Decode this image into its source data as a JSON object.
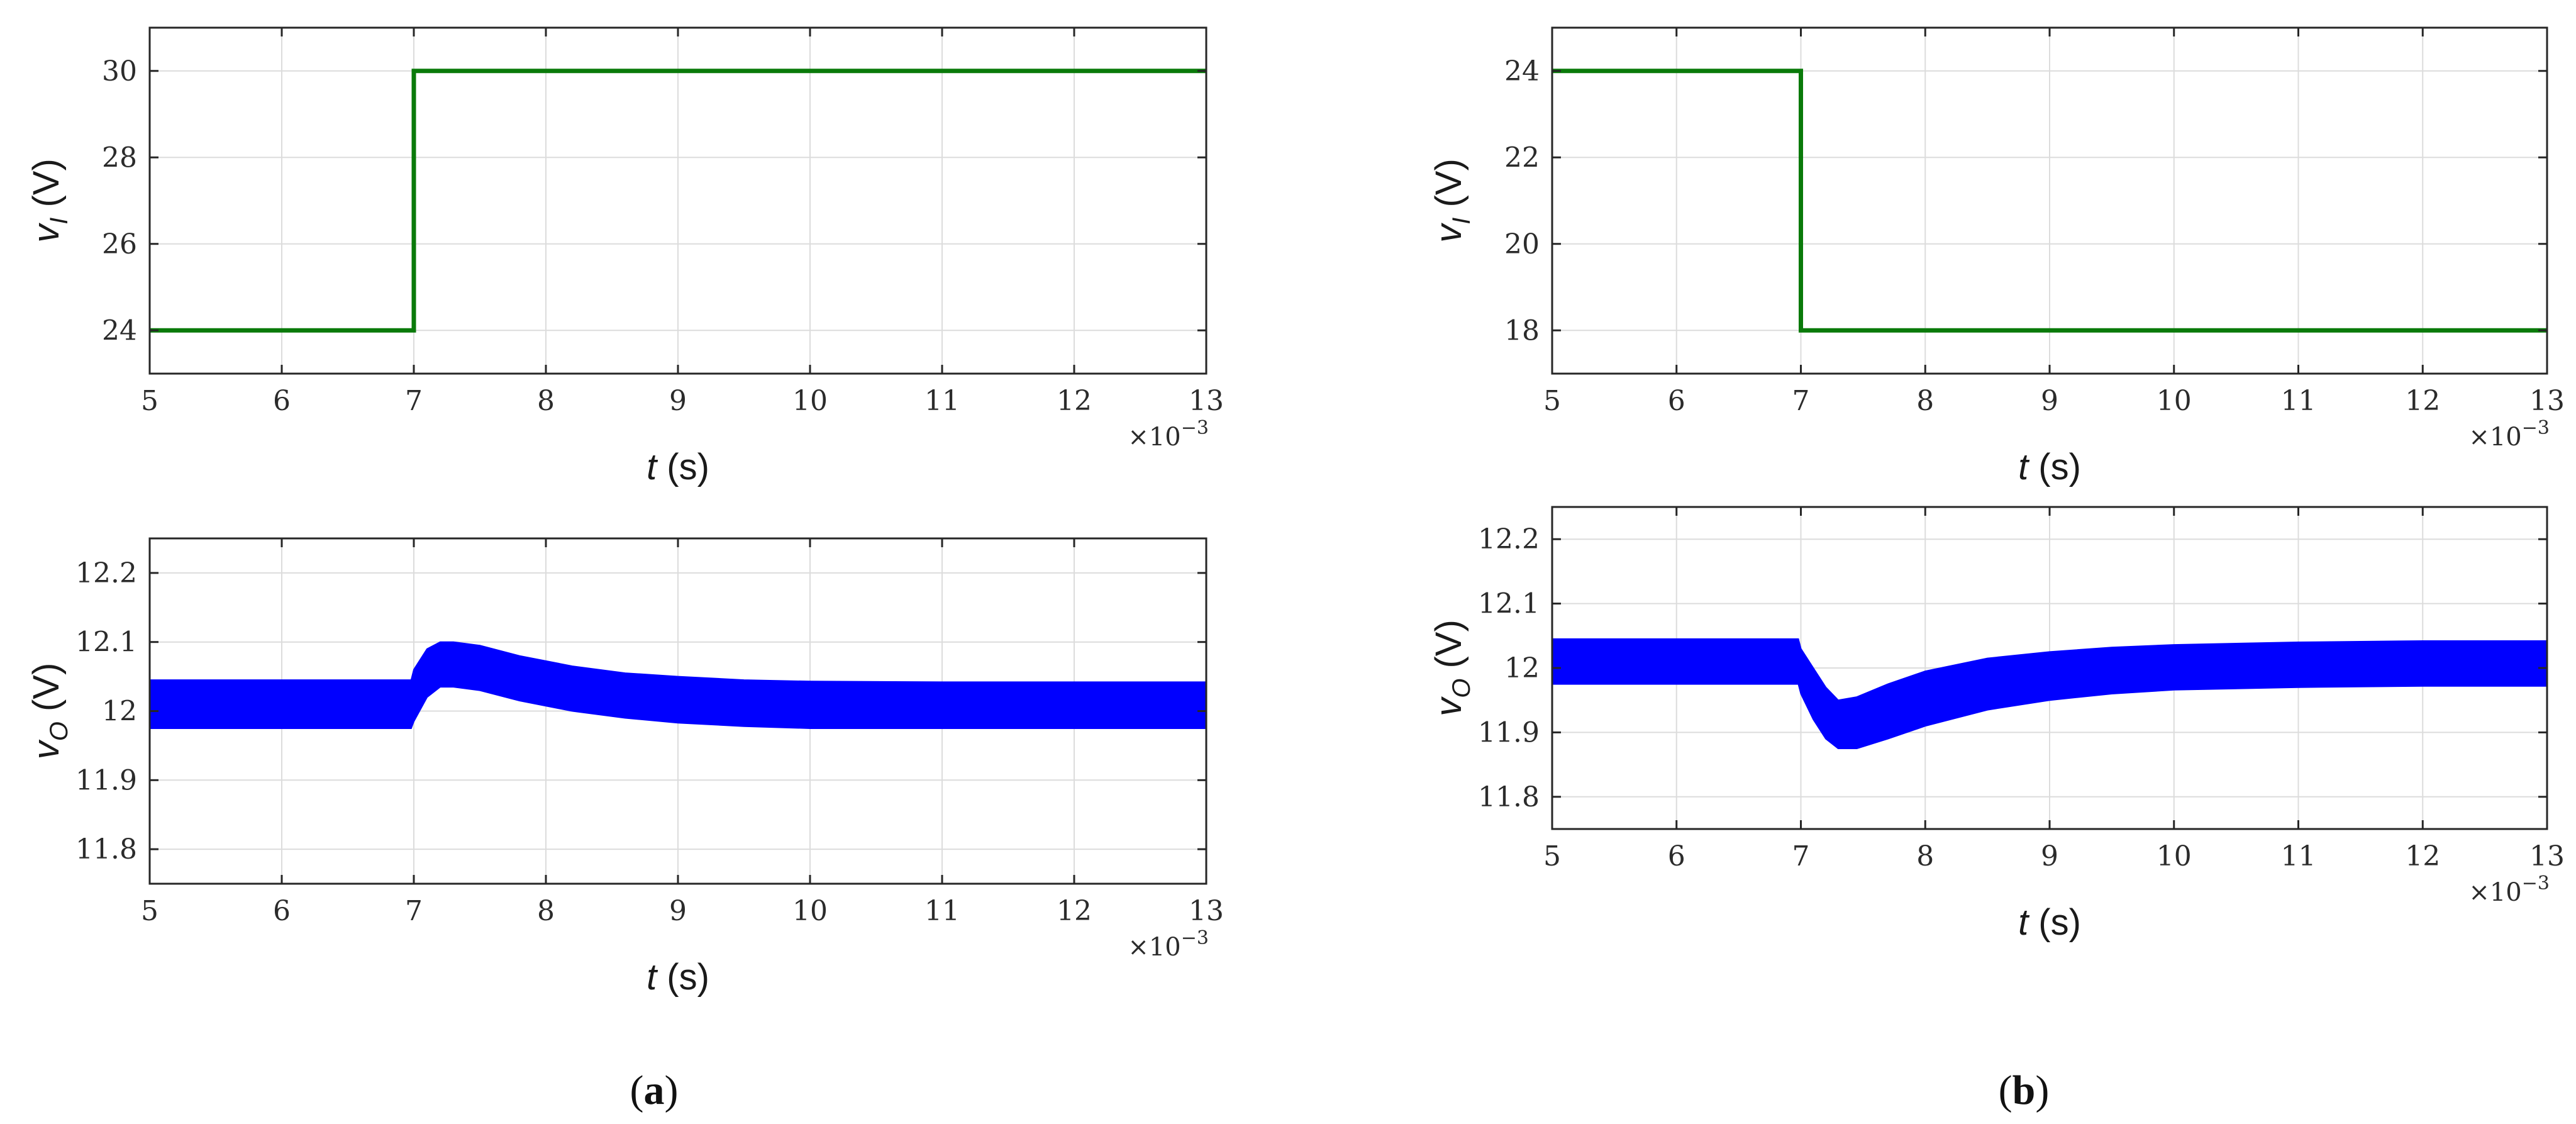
{
  "chart_data": [
    {
      "id": "a-top",
      "type": "line",
      "panel": "(a)",
      "xlabel": {
        "var": "t",
        "unit": "(s)"
      },
      "ylabel": {
        "var": "v",
        "sub": "I",
        "unit": "(V)"
      },
      "x_multiplier": {
        "base": "×10",
        "exp": "−3"
      },
      "xlim": [
        5,
        13
      ],
      "ylim": [
        23,
        31
      ],
      "xticks": [
        5,
        6,
        7,
        8,
        9,
        10,
        11,
        12,
        13
      ],
      "yticks": [
        24,
        26,
        28,
        30
      ],
      "grid": true,
      "series": [
        {
          "color": "#0a7a0a",
          "x": [
            5,
            7,
            7,
            13
          ],
          "y": [
            24,
            24,
            30,
            30
          ]
        }
      ]
    },
    {
      "id": "a-bottom",
      "type": "area",
      "panel": "(a)",
      "xlabel": {
        "var": "t",
        "unit": "(s)"
      },
      "ylabel": {
        "var": "v",
        "sub": "O",
        "unit": "(V)"
      },
      "x_multiplier": {
        "base": "×10",
        "exp": "−3"
      },
      "xlim": [
        5,
        13
      ],
      "ylim": [
        11.75,
        12.25
      ],
      "xticks": [
        5,
        6,
        7,
        8,
        9,
        10,
        11,
        12,
        13
      ],
      "yticks": [
        11.8,
        11.9,
        12,
        12.1,
        12.2
      ],
      "ytick_labels": [
        "11.8",
        "11.9",
        "12",
        "12.1",
        "12.2"
      ],
      "grid": true,
      "series": [
        {
          "color": "#0000ff",
          "x": [
            5,
            6.98,
            7.0,
            7.1,
            7.2,
            7.3,
            7.5,
            7.8,
            8.2,
            8.6,
            9.0,
            9.5,
            10,
            11,
            12,
            13
          ],
          "upper": [
            12.045,
            12.045,
            12.06,
            12.09,
            12.1,
            12.1,
            12.095,
            12.08,
            12.065,
            12.055,
            12.05,
            12.045,
            12.043,
            12.042,
            12.042,
            12.042
          ],
          "lower": [
            11.975,
            11.975,
            11.985,
            12.02,
            12.035,
            12.035,
            12.03,
            12.015,
            12.0,
            11.99,
            11.983,
            11.978,
            11.975,
            11.975,
            11.975,
            11.975
          ]
        }
      ]
    },
    {
      "id": "b-top",
      "type": "line",
      "panel": "(b)",
      "xlabel": {
        "var": "t",
        "unit": "(s)"
      },
      "ylabel": {
        "var": "v",
        "sub": "I",
        "unit": "(V)"
      },
      "x_multiplier": {
        "base": "×10",
        "exp": "−3"
      },
      "xlim": [
        5,
        13
      ],
      "ylim": [
        17,
        25
      ],
      "xticks": [
        5,
        6,
        7,
        8,
        9,
        10,
        11,
        12,
        13
      ],
      "yticks": [
        18,
        20,
        22,
        24
      ],
      "grid": true,
      "series": [
        {
          "color": "#0a7a0a",
          "x": [
            5,
            7,
            7,
            13
          ],
          "y": [
            24,
            24,
            18,
            18
          ]
        }
      ]
    },
    {
      "id": "b-bottom",
      "type": "area",
      "panel": "(b)",
      "xlabel": {
        "var": "t",
        "unit": "(s)"
      },
      "ylabel": {
        "var": "v",
        "sub": "O",
        "unit": "(V)"
      },
      "x_multiplier": {
        "base": "×10",
        "exp": "−3"
      },
      "xlim": [
        5,
        13
      ],
      "ylim": [
        11.75,
        12.25
      ],
      "xticks": [
        5,
        6,
        7,
        8,
        9,
        10,
        11,
        12,
        13
      ],
      "yticks": [
        11.8,
        11.9,
        12,
        12.1,
        12.2
      ],
      "ytick_labels": [
        "11.8",
        "11.9",
        "12",
        "12.1",
        "12.2"
      ],
      "grid": true,
      "series": [
        {
          "color": "#0000ff",
          "x": [
            5,
            6.98,
            7.0,
            7.1,
            7.2,
            7.3,
            7.45,
            7.7,
            8.0,
            8.5,
            9.0,
            9.5,
            10,
            11,
            12,
            13
          ],
          "upper": [
            12.045,
            12.045,
            12.03,
            12.0,
            11.97,
            11.95,
            11.955,
            11.975,
            11.995,
            12.015,
            12.025,
            12.032,
            12.036,
            12.04,
            12.042,
            12.042
          ],
          "lower": [
            11.975,
            11.975,
            11.96,
            11.92,
            11.89,
            11.875,
            11.875,
            11.89,
            11.91,
            11.935,
            11.95,
            11.96,
            11.966,
            11.97,
            11.972,
            11.972
          ]
        }
      ]
    }
  ],
  "captions": {
    "a": "a",
    "b": "b"
  }
}
